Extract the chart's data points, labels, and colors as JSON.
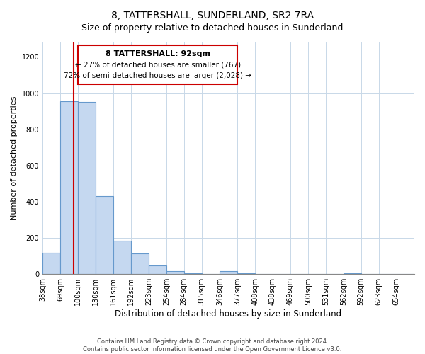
{
  "title": "8, TATTERSHALL, SUNDERLAND, SR2 7RA",
  "subtitle": "Size of property relative to detached houses in Sunderland",
  "xlabel": "Distribution of detached houses by size in Sunderland",
  "ylabel": "Number of detached properties",
  "bar_labels": [
    "38sqm",
    "69sqm",
    "100sqm",
    "130sqm",
    "161sqm",
    "192sqm",
    "223sqm",
    "254sqm",
    "284sqm",
    "315sqm",
    "346sqm",
    "377sqm",
    "408sqm",
    "438sqm",
    "469sqm",
    "500sqm",
    "531sqm",
    "562sqm",
    "592sqm",
    "623sqm",
    "654sqm"
  ],
  "bar_values": [
    120,
    955,
    950,
    430,
    185,
    115,
    48,
    18,
    5,
    0,
    18,
    5,
    0,
    0,
    0,
    0,
    0,
    5,
    0,
    0,
    0
  ],
  "bar_color": "#c5d8f0",
  "bar_edge_color": "#6699cc",
  "property_line_x": 92,
  "property_line_color": "#cc0000",
  "annotation_title": "8 TATTERSHALL: 92sqm",
  "annotation_line1": "← 27% of detached houses are smaller (767)",
  "annotation_line2": "72% of semi-detached houses are larger (2,028) →",
  "annotation_box_color": "#ffffff",
  "annotation_box_edge_color": "#cc0000",
  "ylim": [
    0,
    1280
  ],
  "yticks": [
    0,
    200,
    400,
    600,
    800,
    1000,
    1200
  ],
  "bin_edges": [
    38,
    69,
    100,
    130,
    161,
    192,
    223,
    254,
    284,
    315,
    346,
    377,
    408,
    438,
    469,
    500,
    531,
    562,
    592,
    623,
    654,
    685
  ],
  "footer_line1": "Contains HM Land Registry data © Crown copyright and database right 2024.",
  "footer_line2": "Contains public sector information licensed under the Open Government Licence v3.0.",
  "background_color": "#ffffff",
  "grid_color": "#c8d8e8",
  "title_fontsize": 10,
  "subtitle_fontsize": 9,
  "ylabel_fontsize": 8,
  "xlabel_fontsize": 8.5,
  "tick_fontsize": 7,
  "footer_fontsize": 6
}
